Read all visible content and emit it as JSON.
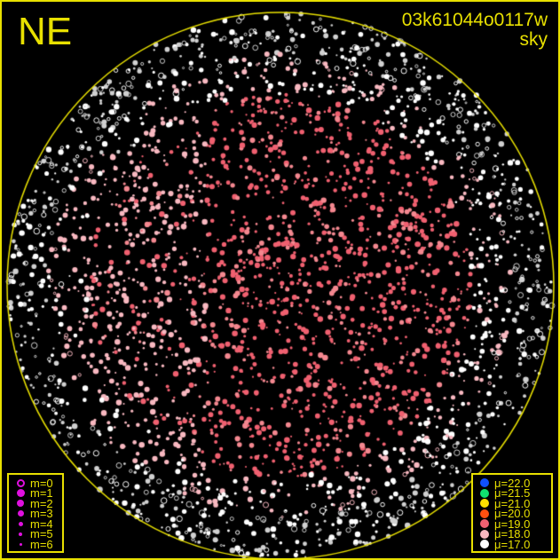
{
  "direction": "NE",
  "title": "03k61044o0117w",
  "subtitle": "sky",
  "colors": {
    "frame": "#e8e000",
    "horizon": "#e8e000",
    "magnitude_marker": "#e010e0"
  },
  "magnitude_legend": [
    {
      "label": "m=0",
      "style": "ring"
    },
    {
      "label": "m=1",
      "style": "filled"
    },
    {
      "label": "m=2",
      "style": "filled"
    },
    {
      "label": "m=3",
      "style": "filled"
    },
    {
      "label": "m=4",
      "style": "filled"
    },
    {
      "label": "m=5",
      "style": "filled"
    },
    {
      "label": "m=6",
      "style": "filled"
    }
  ],
  "brightness_legend": [
    {
      "label": "μ=22.0",
      "color": "#1050ff"
    },
    {
      "label": "μ=21.5",
      "color": "#10e070"
    },
    {
      "label": "μ=21.0",
      "color": "#ffe000"
    },
    {
      "label": "μ=20.0",
      "color": "#ff5010"
    },
    {
      "label": "μ=19.0",
      "color": "#f06070"
    },
    {
      "label": "μ=18.0",
      "color": "#f8b8c0"
    },
    {
      "label": "μ=17.0",
      "color": "#ffffff"
    }
  ]
}
